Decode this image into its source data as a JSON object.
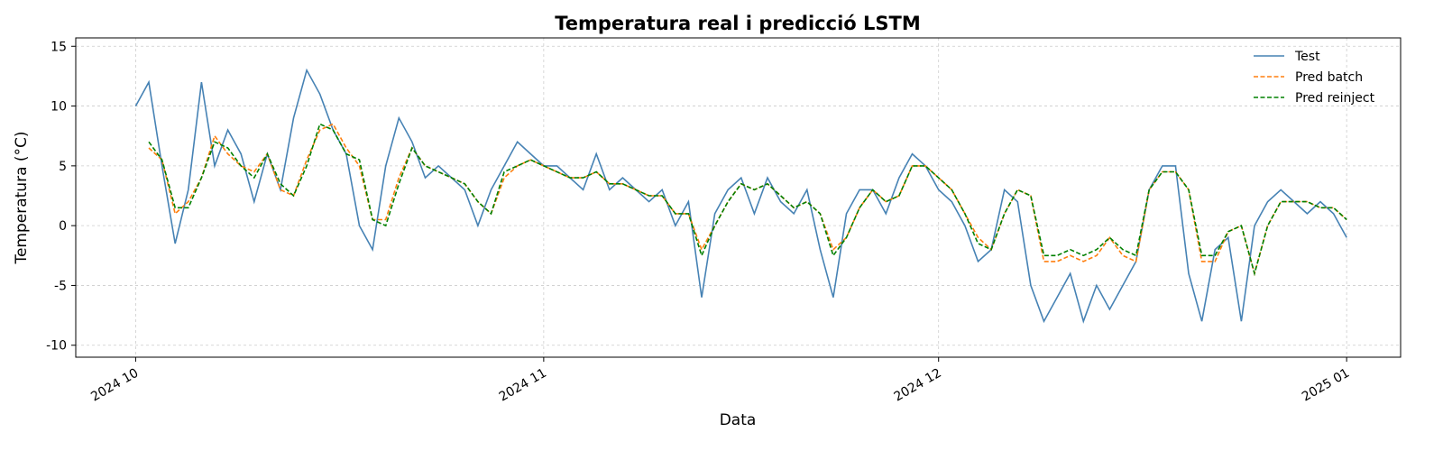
{
  "chart_data": {
    "type": "line",
    "title": "Temperatura real i predicció LSTM",
    "x_label": "Data",
    "y_label": "Temperatura (°C)",
    "x": [
      0,
      1,
      2,
      3,
      4,
      5,
      6,
      7,
      8,
      9,
      10,
      11,
      12,
      13,
      14,
      15,
      16,
      17,
      18,
      19,
      20,
      21,
      22,
      23,
      24,
      25,
      26,
      27,
      28,
      29,
      30,
      31,
      32,
      33,
      34,
      35,
      36,
      37,
      38,
      39,
      40,
      41,
      42,
      43,
      44,
      45,
      46,
      47,
      48,
      49,
      50,
      51,
      52,
      53,
      54,
      55,
      56,
      57,
      58,
      59,
      60,
      61,
      62,
      63,
      64,
      65,
      66,
      67,
      68,
      69,
      70,
      71,
      72,
      73,
      74,
      75,
      76,
      77,
      78,
      79,
      80,
      81,
      82,
      83,
      84,
      85,
      86,
      87,
      88,
      89,
      90,
      91,
      92
    ],
    "series": [
      {
        "name": "Test",
        "color": "#4682b4",
        "dashed": false,
        "values": [
          10,
          12,
          5,
          -1.5,
          3,
          12,
          5,
          8,
          6,
          2,
          6,
          3,
          9,
          13,
          11,
          8,
          6,
          0,
          -2,
          5,
          9,
          7,
          4,
          5,
          4,
          3,
          0,
          3,
          5,
          7,
          6,
          5,
          5,
          4,
          3,
          6,
          3,
          4,
          3,
          2,
          3,
          0,
          2,
          -6,
          1,
          3,
          4,
          1,
          4,
          2,
          1,
          3,
          -2,
          -6,
          1,
          3,
          3,
          1,
          4,
          6,
          5,
          3,
          2,
          0,
          -3,
          -2,
          3,
          2,
          -5,
          -8,
          -6,
          -4,
          -8,
          -5,
          -7,
          -5,
          -3,
          3,
          5,
          5,
          -4,
          -8,
          -2,
          -1,
          -8,
          0,
          2,
          3,
          2,
          1,
          2,
          1,
          -1
        ]
      },
      {
        "name": "Pred batch",
        "color": "#ff7f0e",
        "dashed": true,
        "values": [
          null,
          6.5,
          5.5,
          1,
          2,
          4,
          7.5,
          6,
          5,
          4.5,
          6,
          3,
          2.5,
          5.5,
          8,
          8.5,
          6.5,
          5,
          0.5,
          0.5,
          4,
          6.5,
          5,
          4.5,
          4,
          3.5,
          2,
          1,
          4,
          5,
          5.5,
          5,
          4.5,
          4,
          4,
          4.5,
          3.5,
          3.5,
          3,
          2.5,
          2.5,
          1,
          1,
          -2,
          0,
          2,
          3.5,
          3,
          3.5,
          2.5,
          1.5,
          2,
          1,
          -2,
          -1,
          1.5,
          3,
          2,
          2.5,
          5,
          5,
          4,
          3,
          1,
          -1,
          -2,
          1,
          3,
          2.5,
          -3,
          -3,
          -2.5,
          -3,
          -2.5,
          -1,
          -2.5,
          -3,
          3,
          4.5,
          4.5,
          3,
          -3,
          -3,
          -0.5,
          0,
          -4,
          0,
          2,
          2,
          2,
          1.5,
          1.5,
          0.5
        ]
      },
      {
        "name": "Pred reinject",
        "color": "#008000",
        "dashed": true,
        "values": [
          null,
          7,
          5.5,
          1.5,
          1.5,
          4,
          7,
          6.5,
          5,
          4,
          6,
          3.5,
          2.5,
          5,
          8.5,
          8,
          6,
          5.5,
          0.5,
          0,
          3.5,
          6.5,
          5,
          4.5,
          4,
          3.5,
          2,
          1,
          4.5,
          5,
          5.5,
          5,
          4.5,
          4,
          4,
          4.5,
          3.5,
          3.5,
          3,
          2.5,
          2.5,
          1,
          1,
          -2.5,
          0,
          2,
          3.5,
          3,
          3.5,
          2.5,
          1.5,
          2,
          1,
          -2.5,
          -1,
          1.5,
          3,
          2,
          2.5,
          5,
          5,
          4,
          3,
          1,
          -1.5,
          -2,
          1,
          3,
          2.5,
          -2.5,
          -2.5,
          -2,
          -2.5,
          -2,
          -1,
          -2,
          -2.5,
          3,
          4.5,
          4.5,
          3,
          -2.5,
          -2.5,
          -0.5,
          0,
          -4,
          0,
          2,
          2,
          2,
          1.5,
          1.5,
          0.5
        ]
      }
    ],
    "xlim": [
      -4.55,
      96.1
    ],
    "xticks": [
      {
        "value": 0,
        "label": "2024 10"
      },
      {
        "value": 31,
        "label": "2024 11"
      },
      {
        "value": 61,
        "label": "2024 12"
      },
      {
        "value": 92,
        "label": "2025 01"
      }
    ],
    "ylim": [
      -11,
      15.7
    ],
    "yticks": [
      -10,
      -5,
      0,
      5,
      10,
      15
    ],
    "grid": true,
    "legend": "upper right"
  }
}
